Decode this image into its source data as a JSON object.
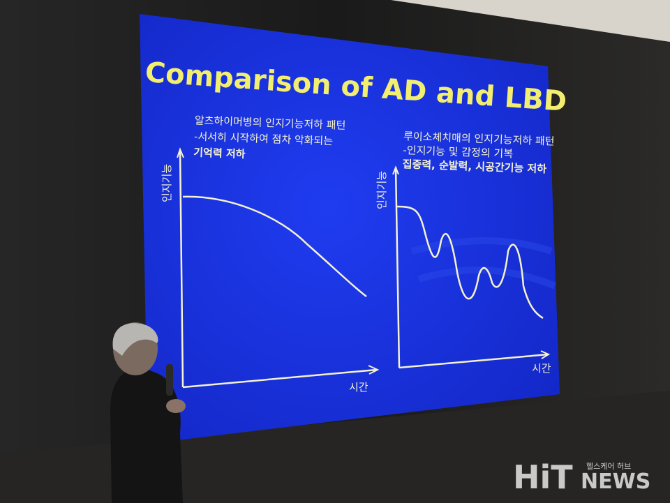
{
  "slide": {
    "title": "Comparison of AD and LBD",
    "panels": [
      {
        "caption": [
          "알츠하이머병의 인지기능저하 패턴",
          "-서서히 시작하여 점차 악화되는",
          "기억력 저하"
        ],
        "y_label": "인지기능",
        "x_label": "시간"
      },
      {
        "caption": [
          "루이소체치매의 인지기능저하 패턴",
          "-인지기능 및 감정의 기복",
          "집중력, 순발력, 시공간기능 저하"
        ],
        "y_label": "인지기능",
        "x_label": "시간"
      }
    ]
  },
  "watermark": {
    "brand_a": "HiT",
    "brand_b": "NEWS",
    "tagline": "헬스케어 허브"
  }
}
